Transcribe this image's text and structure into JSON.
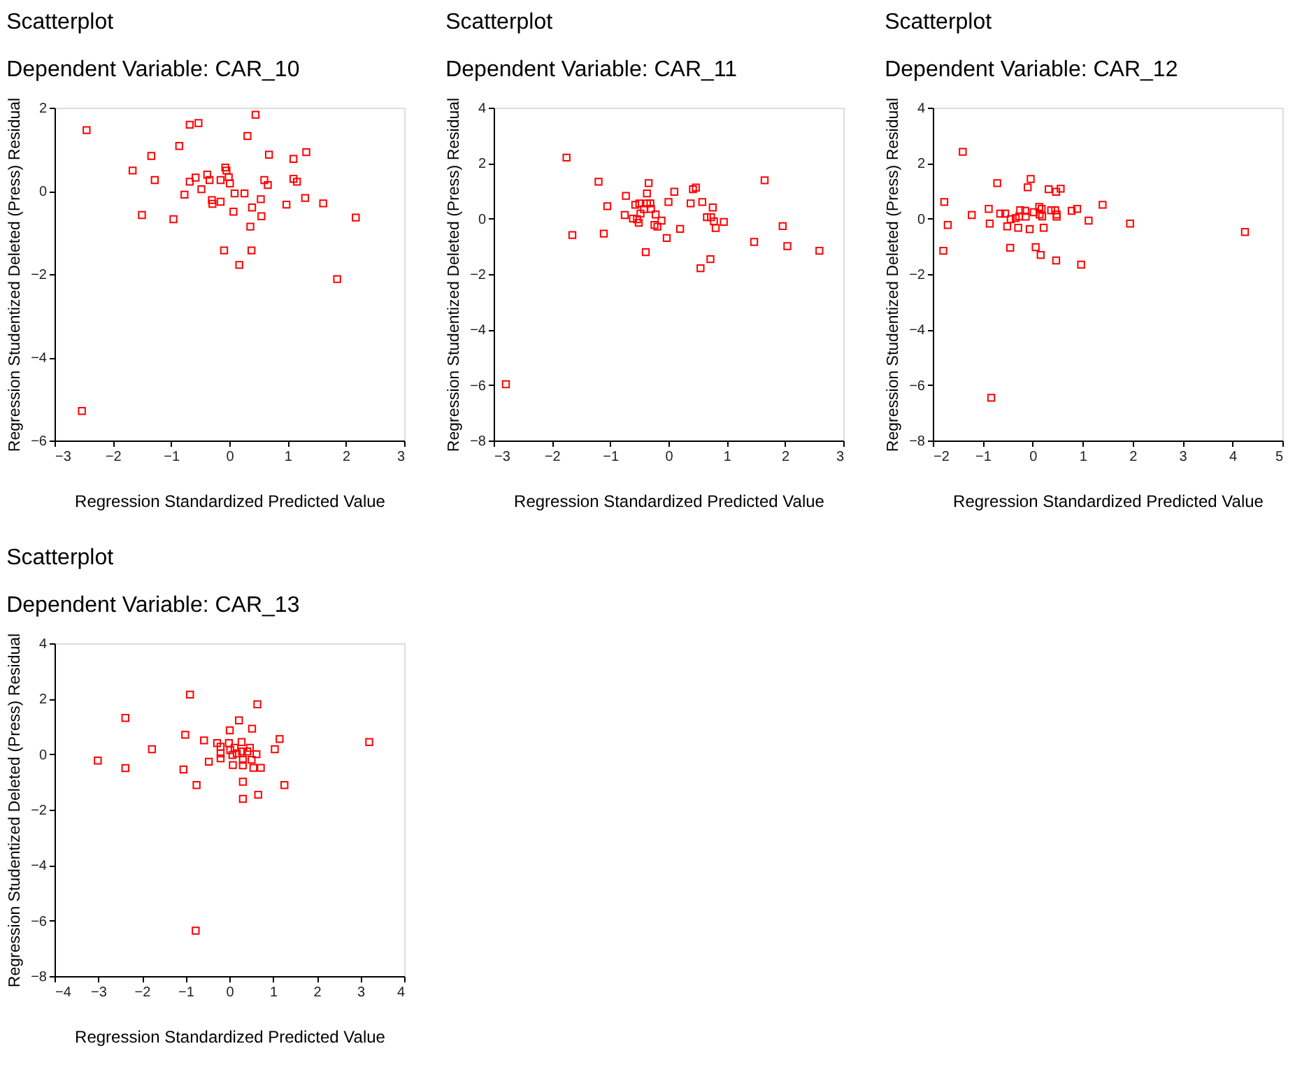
{
  "chart_data": [
    {
      "type": "scatter",
      "title": "Scatterplot",
      "subtitle": "Dependent Variable: CAR_10",
      "xlabel": "Regression Standardized Predicted Value",
      "ylabel": "Regression Studentized Deleted (Press) Residual",
      "xlim": [
        -3,
        3
      ],
      "xticks": [
        -3,
        -2,
        -1,
        0,
        1,
        2,
        3
      ],
      "ylim": [
        -6,
        2
      ],
      "yticks": [
        -6,
        -4,
        -2,
        0,
        2
      ],
      "marker": "square",
      "grid": false,
      "series": [
        {
          "color": "#ff0000",
          "x": [
            -2.45,
            -2.53,
            -1.66,
            -1.34,
            -1.28,
            -1.5,
            -0.96,
            -0.86,
            -0.68,
            -0.53,
            -0.68,
            -0.58,
            -0.77,
            -0.48,
            -0.38,
            -0.34,
            -0.3,
            -0.29,
            -0.15,
            -0.15,
            -0.07,
            -0.05,
            -0.01,
            0.01,
            0.09,
            0.07,
            -0.09,
            0.17,
            0.26,
            0.31,
            0.45,
            0.39,
            0.36,
            0.38,
            0.54,
            0.55,
            0.6,
            0.66,
            0.68,
            0.98,
            1.1,
            1.1,
            1.16,
            1.32,
            1.3,
            1.61,
            1.85,
            2.17
          ],
          "values": [
            1.46,
            -5.29,
            0.49,
            0.84,
            0.26,
            -0.58,
            -0.68,
            1.08,
            1.59,
            1.63,
            0.22,
            0.32,
            -0.09,
            0.04,
            0.39,
            0.26,
            -0.22,
            -0.31,
            0.26,
            -0.26,
            0.56,
            0.49,
            0.33,
            0.18,
            -0.06,
            -0.5,
            -1.43,
            -1.78,
            -0.06,
            1.32,
            1.83,
            -0.4,
            -0.86,
            -1.43,
            -0.2,
            -0.61,
            0.26,
            0.14,
            0.87,
            -0.33,
            0.77,
            0.29,
            0.22,
            0.93,
            -0.17,
            -0.3,
            -2.12,
            -0.64
          ]
        }
      ]
    },
    {
      "type": "scatter",
      "title": "Scatterplot",
      "subtitle": "Dependent Variable: CAR_11",
      "xlabel": "Regression Standardized Predicted Value",
      "ylabel": "Regression Studentized Deleted (Press) Residual",
      "xlim": [
        -3,
        3
      ],
      "xticks": [
        -3,
        -2,
        -1,
        0,
        1,
        2,
        3
      ],
      "ylim": [
        -8,
        4
      ],
      "yticks": [
        -8,
        -6,
        -4,
        -2,
        0,
        2,
        4
      ],
      "marker": "square",
      "grid": false,
      "series": [
        {
          "color": "#ff0000",
          "x": [
            -1.75,
            -1.2,
            -1.65,
            -1.11,
            -1.05,
            -0.73,
            -0.75,
            -0.61,
            -0.57,
            -0.54,
            -0.51,
            -0.5,
            -0.48,
            -0.42,
            -0.37,
            -0.34,
            -0.37,
            -0.31,
            -0.3,
            -0.39,
            -0.22,
            -0.24,
            -0.19,
            -0.12,
            0.0,
            -0.03,
            0.1,
            0.2,
            0.38,
            0.42,
            0.47,
            0.58,
            0.55,
            0.66,
            0.73,
            0.72,
            0.76,
            0.78,
            0.81,
            0.95,
            1.47,
            1.65,
            1.96,
            2.04,
            2.59,
            -2.79
          ],
          "values": [
            2.2,
            1.33,
            -0.59,
            -0.54,
            0.45,
            0.82,
            0.13,
            0.0,
            0.5,
            -0.02,
            -0.15,
            0.55,
            0.18,
            0.34,
            0.91,
            1.28,
            0.55,
            0.55,
            0.35,
            -1.21,
            0.15,
            -0.23,
            -0.29,
            -0.07,
            0.6,
            -0.7,
            0.97,
            -0.37,
            0.55,
            1.06,
            1.12,
            0.6,
            -1.79,
            0.05,
            0.05,
            -1.46,
            0.4,
            -0.1,
            -0.34,
            -0.12,
            -0.84,
            1.38,
            -0.27,
            -0.99,
            -1.16,
            -5.97
          ]
        }
      ]
    },
    {
      "type": "scatter",
      "title": "Scatterplot",
      "subtitle": "Dependent Variable: CAR_12",
      "xlabel": "Regression Standardized Predicted Value",
      "ylabel": "Regression Studentized Deleted (Press) Residual",
      "xlim": [
        -2,
        5
      ],
      "xticks": [
        -2,
        -1,
        0,
        1,
        2,
        3,
        4,
        5
      ],
      "ylim": [
        -8,
        4
      ],
      "yticks": [
        -8,
        -6,
        -4,
        -2,
        0,
        2,
        4
      ],
      "marker": "square",
      "grid": false,
      "series": [
        {
          "color": "#ff0000",
          "x": [
            -1.4,
            -1.77,
            -1.7,
            -1.79,
            -1.22,
            -0.71,
            -0.88,
            -0.86,
            -0.65,
            -0.55,
            -0.51,
            -0.44,
            -0.45,
            -0.34,
            -0.29,
            -0.25,
            -0.27,
            -0.15,
            -0.14,
            -0.1,
            -0.04,
            -0.06,
            0.02,
            0.06,
            0.13,
            0.14,
            0.18,
            0.19,
            0.22,
            0.16,
            0.32,
            0.37,
            0.45,
            0.47,
            0.48,
            0.48,
            0.47,
            0.56,
            0.78,
            0.89,
            0.97,
            1.12,
            1.4,
            1.95,
            4.25,
            -0.83
          ],
          "values": [
            2.41,
            0.6,
            -0.23,
            -1.16,
            0.13,
            1.28,
            0.35,
            -0.18,
            0.18,
            0.18,
            -0.28,
            -0.02,
            -1.05,
            0.02,
            -0.33,
            0.3,
            0.08,
            0.28,
            0.07,
            1.13,
            1.43,
            -0.38,
            0.23,
            -1.03,
            0.42,
            0.15,
            0.35,
            0.08,
            -0.33,
            -1.31,
            1.06,
            0.3,
            0.3,
            0.97,
            0.15,
            0.07,
            -1.51,
            1.08,
            0.28,
            0.35,
            -1.66,
            -0.07,
            0.5,
            -0.18,
            -0.48,
            -6.46
          ]
        }
      ]
    },
    {
      "type": "scatter",
      "title": "Scatterplot",
      "subtitle": "Dependent Variable: CAR_13",
      "xlabel": "Regression Standardized Predicted Value",
      "ylabel": "Regression Studentized Deleted (Press) Residual",
      "xlim": [
        -4,
        4
      ],
      "xticks": [
        -4,
        -3,
        -2,
        -1,
        0,
        1,
        2,
        3,
        4
      ],
      "ylim": [
        -8,
        4
      ],
      "yticks": [
        -8,
        -6,
        -4,
        -2,
        0,
        2,
        4
      ],
      "marker": "square",
      "grid": false,
      "series": [
        {
          "color": "#ff0000",
          "x": [
            -3.01,
            -2.38,
            -2.38,
            -1.77,
            -0.9,
            -1.01,
            -1.05,
            -0.75,
            -0.77,
            -0.58,
            -0.47,
            -0.28,
            -0.2,
            -0.2,
            -0.2,
            -0.01,
            0.01,
            0.02,
            0.07,
            0.08,
            0.12,
            0.17,
            0.22,
            0.28,
            0.29,
            0.31,
            0.31,
            0.31,
            0.31,
            0.41,
            0.47,
            0.51,
            0.52,
            0.55,
            0.62,
            0.64,
            0.66,
            0.72,
            1.04,
            1.15,
            1.26,
            3.2
          ],
          "values": [
            -0.23,
            1.31,
            -0.5,
            0.18,
            2.15,
            0.7,
            -0.55,
            -1.11,
            -6.36,
            0.5,
            -0.27,
            0.4,
            0.27,
            0.03,
            -0.15,
            0.4,
            0.86,
            0.15,
            -0.03,
            -0.39,
            0.23,
            0.03,
            1.22,
            0.44,
            0.1,
            -0.2,
            -0.4,
            -0.99,
            -1.61,
            0.1,
            0.23,
            -0.2,
            0.92,
            -0.49,
            0.0,
            1.8,
            -1.46,
            -0.49,
            0.18,
            0.55,
            -1.11,
            0.44
          ]
        }
      ]
    }
  ]
}
